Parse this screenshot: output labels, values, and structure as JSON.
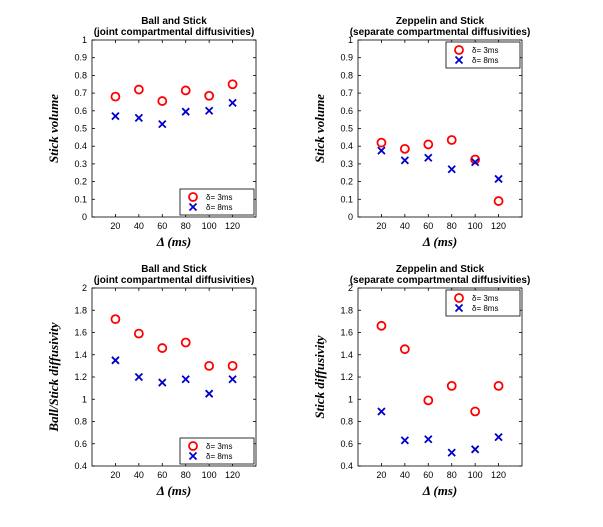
{
  "figure": {
    "background": "#ffffff"
  },
  "colors": {
    "delta3": "#ff0000",
    "delta8": "#0000cc",
    "axis": "#000000"
  },
  "chart_data": [
    {
      "type": "scatter",
      "title": [
        "Ball and Stick",
        "(joint compartmental diffusivities)"
      ],
      "xlabel": "Δ (ms)",
      "ylabel": "Stick volume",
      "x": [
        20,
        40,
        60,
        80,
        100,
        120
      ],
      "xticks": [
        "20",
        "40",
        "60",
        "80",
        "100",
        "120"
      ],
      "xlim": [
        0,
        140
      ],
      "ylim": [
        0,
        1
      ],
      "yticks": [
        "0",
        "0.1",
        "0.2",
        "0.3",
        "0.4",
        "0.5",
        "0.6",
        "0.7",
        "0.8",
        "0.9",
        "1"
      ],
      "legend": "bottom-right",
      "series": [
        {
          "name": "δ= 3ms",
          "marker": "circle",
          "color": "#ff0000",
          "values": [
            0.68,
            0.72,
            0.655,
            0.715,
            0.685,
            0.75
          ]
        },
        {
          "name": "δ= 8ms",
          "marker": "x",
          "color": "#0000cc",
          "values": [
            0.57,
            0.56,
            0.525,
            0.595,
            0.6,
            0.645
          ]
        }
      ]
    },
    {
      "type": "scatter",
      "title": [
        "Zeppelin and Stick",
        "(separate compartmental diffusivities)"
      ],
      "xlabel": "Δ (ms)",
      "ylabel": "Stick volume",
      "x": [
        20,
        40,
        60,
        80,
        100,
        120
      ],
      "xticks": [
        "20",
        "40",
        "60",
        "80",
        "100",
        "120"
      ],
      "xlim": [
        0,
        140
      ],
      "ylim": [
        0,
        1
      ],
      "yticks": [
        "0",
        "0.1",
        "0.2",
        "0.3",
        "0.4",
        "0.5",
        "0.6",
        "0.7",
        "0.8",
        "0.9",
        "1"
      ],
      "legend": "top-right",
      "series": [
        {
          "name": "δ= 3ms",
          "marker": "circle",
          "color": "#ff0000",
          "values": [
            0.42,
            0.385,
            0.41,
            0.435,
            0.325,
            0.09
          ]
        },
        {
          "name": "δ= 8ms",
          "marker": "x",
          "color": "#0000cc",
          "values": [
            0.375,
            0.32,
            0.335,
            0.27,
            0.31,
            0.215
          ]
        }
      ]
    },
    {
      "type": "scatter",
      "title": [
        "Ball and Stick",
        "(joint compartmental diffusivities)"
      ],
      "xlabel": "Δ (ms)",
      "ylabel": "Ball/Stick diffusivity",
      "x": [
        20,
        40,
        60,
        80,
        100,
        120
      ],
      "xticks": [
        "20",
        "40",
        "60",
        "80",
        "100",
        "120"
      ],
      "xlim": [
        0,
        140
      ],
      "ylim": [
        0.4,
        2
      ],
      "yticks": [
        "0.4",
        "0.6",
        "0.8",
        "1",
        "1.2",
        "1.4",
        "1.6",
        "1.8",
        "2"
      ],
      "legend": "bottom-right",
      "series": [
        {
          "name": "δ= 3ms",
          "marker": "circle",
          "color": "#ff0000",
          "values": [
            1.72,
            1.59,
            1.46,
            1.51,
            1.3,
            1.3
          ]
        },
        {
          "name": "δ= 8ms",
          "marker": "x",
          "color": "#0000cc",
          "values": [
            1.35,
            1.2,
            1.15,
            1.18,
            1.05,
            1.18
          ]
        }
      ]
    },
    {
      "type": "scatter",
      "title": [
        "Zeppelin and Stick",
        "(separate compartmental diffusivities)"
      ],
      "xlabel": "Δ (ms)",
      "ylabel": "Stick diffusivity",
      "x": [
        20,
        40,
        60,
        80,
        100,
        120
      ],
      "xticks": [
        "20",
        "40",
        "60",
        "80",
        "100",
        "120"
      ],
      "xlim": [
        0,
        140
      ],
      "ylim": [
        0.4,
        2
      ],
      "yticks": [
        "0.4",
        "0.6",
        "0.8",
        "1",
        "1.2",
        "1.4",
        "1.6",
        "1.8",
        "2"
      ],
      "legend": "top-right",
      "series": [
        {
          "name": "δ= 3ms",
          "marker": "circle",
          "color": "#ff0000",
          "values": [
            1.66,
            1.45,
            0.99,
            1.12,
            0.89,
            1.12
          ]
        },
        {
          "name": "δ= 8ms",
          "marker": "x",
          "color": "#0000cc",
          "values": [
            0.89,
            0.63,
            0.64,
            0.52,
            0.55,
            0.66
          ]
        }
      ]
    }
  ]
}
